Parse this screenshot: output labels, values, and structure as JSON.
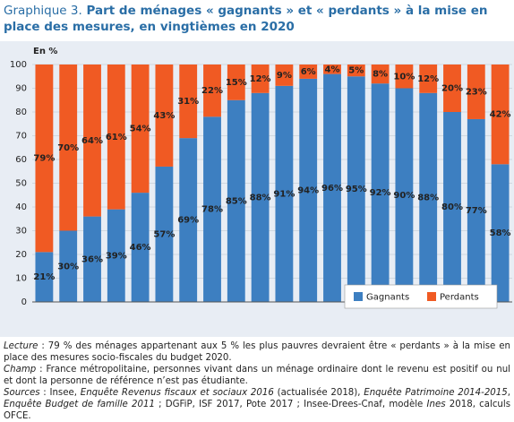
{
  "chart_data": {
    "type": "stacked_bar",
    "title_label": "Graphique 3.",
    "title": "Part de ménages « gagnants » et « perdants » à la mise en place des mesures, en vingtièmes en 2020",
    "y_label": "En %",
    "ylim": [
      0,
      100
    ],
    "yticks": [
      0,
      10,
      20,
      30,
      40,
      50,
      60,
      70,
      80,
      90,
      100
    ],
    "grid": true,
    "legend": "bottom-right",
    "series": [
      {
        "name": "Gagnants",
        "color": "#3d7fc1",
        "values": [
          21,
          30,
          36,
          39,
          46,
          57,
          69,
          78,
          85,
          88,
          91,
          94,
          96,
          95,
          92,
          90,
          88,
          80,
          77,
          58
        ],
        "value_labels": [
          "21%",
          "30%",
          "36%",
          "39%",
          "46%",
          "57%",
          "69%",
          "78%",
          "85%",
          "88%",
          "91%",
          "94%",
          "96%",
          "95%",
          "92%",
          "90%",
          "88%",
          "80%",
          "77%",
          "58%"
        ]
      },
      {
        "name": "Perdants",
        "color": "#f05a23",
        "values": [
          79,
          70,
          64,
          61,
          54,
          43,
          31,
          22,
          15,
          12,
          9,
          6,
          4,
          5,
          8,
          10,
          12,
          20,
          23,
          42
        ],
        "value_labels": [
          "79%",
          "70%",
          "64%",
          "61%",
          "54%",
          "43%",
          "31%",
          "22%",
          "15%",
          "12%",
          "9%",
          "6%",
          "4%",
          "5%",
          "8%",
          "10%",
          "12%",
          "20%",
          "23%",
          "42%"
        ]
      }
    ]
  },
  "notes": [
    [
      {
        "text": "Lecture",
        "italic": true
      },
      {
        "text": " : 79 % des ménages appartenant aux 5 % les plus pauvres devraient être « perdants » à la mise en place des mesures socio-fiscales du budget 2020."
      }
    ],
    [
      {
        "text": "Champ",
        "italic": true
      },
      {
        "text": " : France métropolitaine, personnes vivant dans un ménage ordinaire dont le revenu est positif ou nul et dont la personne de référence n’est pas étudiante."
      }
    ],
    [
      {
        "text": "Sources",
        "italic": true
      },
      {
        "text": " : Insee, "
      },
      {
        "text": "Enquête Revenus fiscaux et sociaux 2016",
        "italic": true
      },
      {
        "text": " (actualisée 2018), "
      },
      {
        "text": "Enquête Patrimoine 2014-2015",
        "italic": true
      },
      {
        "text": ", "
      },
      {
        "text": "Enquête Budget de famille 2011",
        "italic": true
      },
      {
        "text": " ; DGFiP, ISF 2017, Pote 2017 ; Insee-Drees-Cnaf, modèle "
      },
      {
        "text": "Ines",
        "italic": true
      },
      {
        "text": " 2018, calculs OFCE."
      }
    ]
  ]
}
